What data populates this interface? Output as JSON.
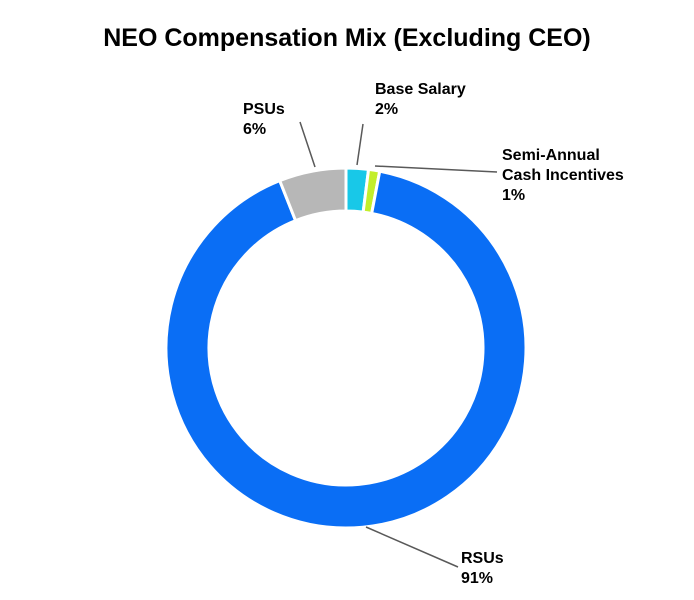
{
  "chart_data": {
    "type": "pie",
    "donut": true,
    "title": "NEO Compensation Mix (Excluding CEO)",
    "slices": [
      {
        "key": "base-salary",
        "label_lines": [
          "Base Salary"
        ],
        "value_text": "2%",
        "value": 2,
        "color": "#18C8E8"
      },
      {
        "key": "semi-annual-cash-incentives",
        "label_lines": [
          "Semi-Annual",
          "Cash Incentives"
        ],
        "value_text": "1%",
        "value": 1,
        "color": "#C3EE2B"
      },
      {
        "key": "rsus",
        "label_lines": [
          "RSUs"
        ],
        "value_text": "91%",
        "value": 91,
        "color": "#0A6EF5"
      },
      {
        "key": "psus",
        "label_lines": [
          "PSUs"
        ],
        "value_text": "6%",
        "value": 6,
        "color": "#B7B7B7"
      }
    ],
    "legend": "none",
    "data_labels": "outside with leader lines"
  }
}
